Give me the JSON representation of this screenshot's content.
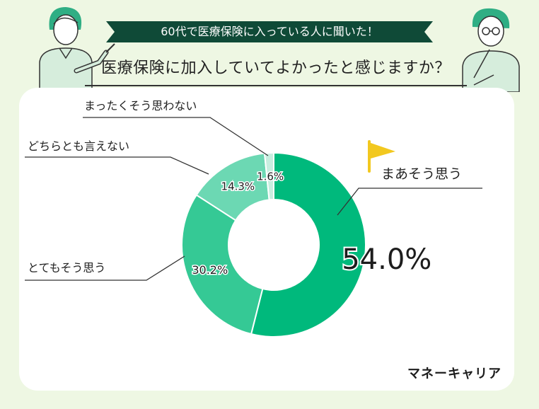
{
  "header": {
    "banner": "60代で医療保険に入っている人に聞いた！",
    "question": "医療保険に加入していてよかったと感じますか？"
  },
  "chart_data": {
    "type": "pie",
    "variant": "donut",
    "title": "",
    "categories": [
      "まあそう思う",
      "とてもそう思う",
      "どちらとも言えない",
      "まったくそう思わない"
    ],
    "values": [
      54.0,
      30.2,
      14.3,
      1.6
    ],
    "value_labels": [
      "54.0%",
      "30.2%",
      "14.3%",
      "1.6%"
    ],
    "colors": [
      "#00b97c",
      "#35c995",
      "#6cd8b3",
      "#c7eedf"
    ],
    "start_angle_deg": 0,
    "direction": "clockwise"
  },
  "colors": {
    "background": "#eef7e3",
    "banner": "#0f4a37",
    "flag": "#f2c81f"
  },
  "brand": "マネーキャリア",
  "icons": [
    "male-nurse-illustration",
    "thinking-man-illustration",
    "flag-icon"
  ]
}
